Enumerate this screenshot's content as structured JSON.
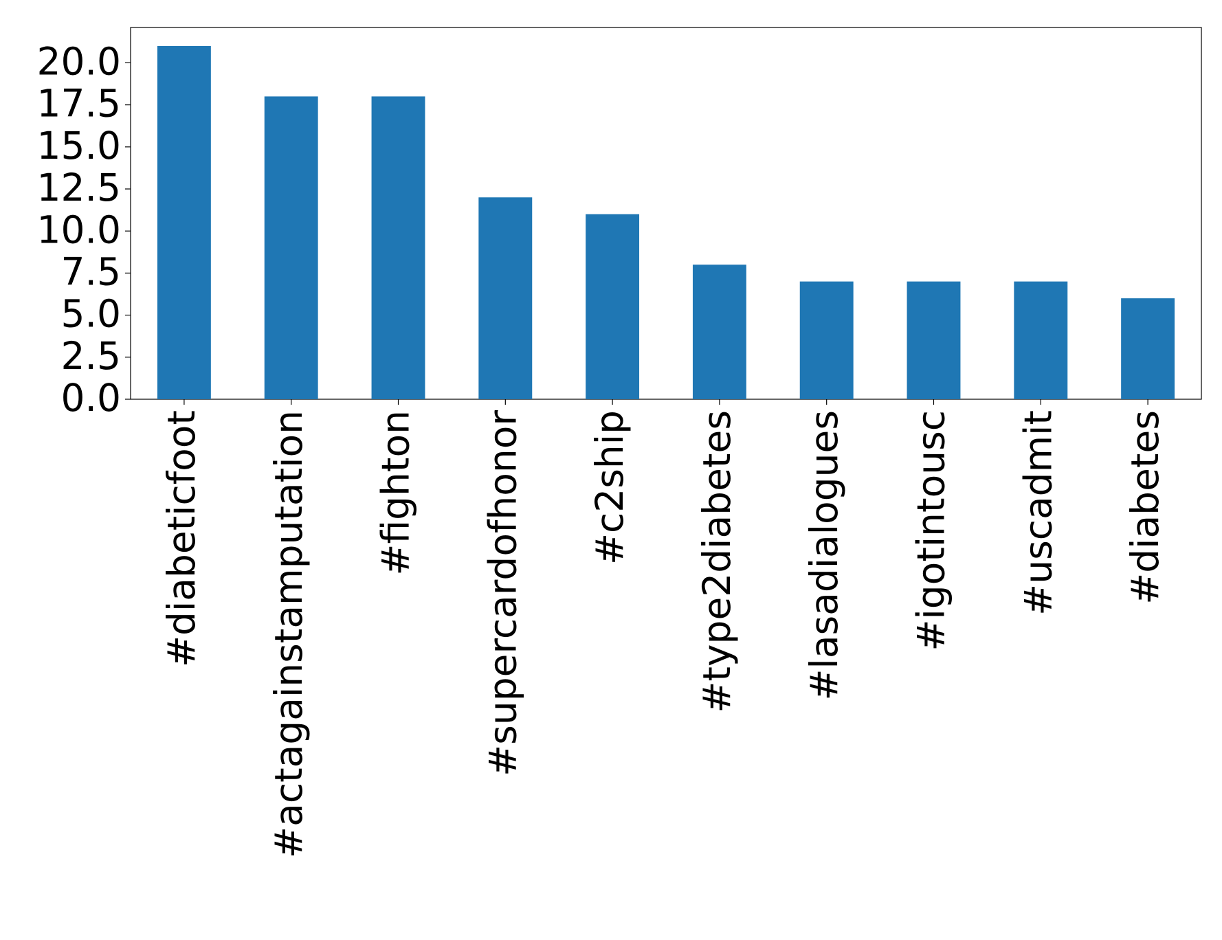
{
  "chart_data": {
    "type": "bar",
    "categories": [
      "#diabeticfoot",
      "#actagainstamputation",
      "#fighton",
      "#supercardofhonor",
      "#c2ship",
      "#type2diabetes",
      "#lasadialogues",
      "#igotintousc",
      "#uscadmit",
      "#diabetes"
    ],
    "values": [
      21,
      18,
      18,
      12,
      11,
      8,
      7,
      7,
      7,
      6
    ],
    "color": "#1f77b4",
    "ylim": [
      0,
      22.1
    ],
    "yticks": [
      {
        "value": 0,
        "label": "0.0"
      },
      {
        "value": 2.5,
        "label": "2.5"
      },
      {
        "value": 5,
        "label": "5.0"
      },
      {
        "value": 7.5,
        "label": "7.5"
      },
      {
        "value": 10,
        "label": "10.0"
      },
      {
        "value": 12.5,
        "label": "12.5"
      },
      {
        "value": 15,
        "label": "15.0"
      },
      {
        "value": 17.5,
        "label": "17.5"
      },
      {
        "value": 20,
        "label": "20.0"
      }
    ],
    "grid": false
  }
}
